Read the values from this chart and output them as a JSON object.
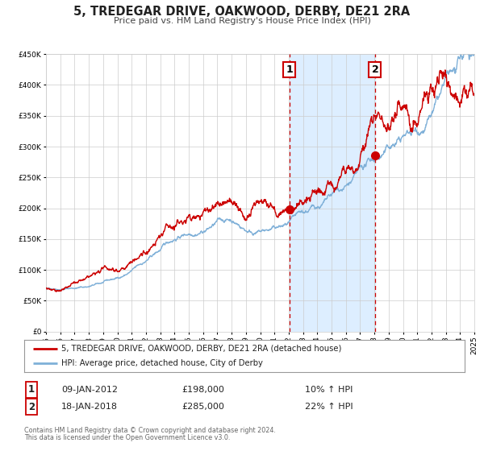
{
  "title": "5, TREDEGAR DRIVE, OAKWOOD, DERBY, DE21 2RA",
  "subtitle": "Price paid vs. HM Land Registry's House Price Index (HPI)",
  "legend_line1": "5, TREDEGAR DRIVE, OAKWOOD, DERBY, DE21 2RA (detached house)",
  "legend_line2": "HPI: Average price, detached house, City of Derby",
  "footer1": "Contains HM Land Registry data © Crown copyright and database right 2024.",
  "footer2": "This data is licensed under the Open Government Licence v3.0.",
  "sale1_label": "1",
  "sale1_date": "09-JAN-2012",
  "sale1_price": "£198,000",
  "sale1_hpi": "10% ↑ HPI",
  "sale2_label": "2",
  "sale2_date": "18-JAN-2018",
  "sale2_price": "£285,000",
  "sale2_hpi": "22% ↑ HPI",
  "sale1_year": 2012.05,
  "sale1_value": 198000,
  "sale2_year": 2018.05,
  "sale2_value": 285000,
  "ymin": 0,
  "ymax": 450000,
  "xmin": 1995,
  "xmax": 2025,
  "red_color": "#cc0000",
  "blue_color": "#7fb0d8",
  "shade_color": "#ddeeff",
  "grid_color": "#cccccc",
  "background_color": "#ffffff"
}
